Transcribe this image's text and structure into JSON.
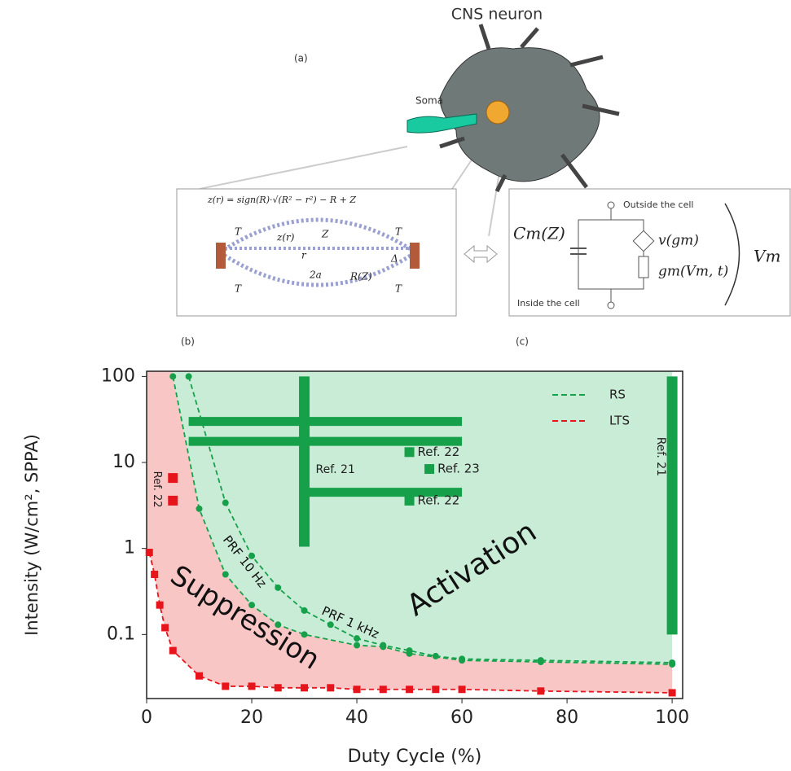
{
  "diagram": {
    "title": "CNS neuron",
    "label_a": "(a)",
    "soma": "Soma",
    "label_b": "(b)",
    "label_c": "(c)",
    "equation": "z(r) = sign(R)·√(R² − r²) − R + Z",
    "b_symbols": [
      "T",
      "T",
      "T",
      "T",
      "z(r)",
      "Z",
      "r",
      "2a",
      "R(Z)",
      "Δ"
    ],
    "outside": "Outside the cell",
    "inside": "Inside the cell",
    "cm": "Cm(Z)",
    "v": "v(gm)",
    "gm": "gm(Vm, t)",
    "vm": "Vm"
  },
  "chart_data": {
    "type": "line",
    "xlabel": "Duty Cycle (%)",
    "ylabel": "Intensity (W/cm², SPPA)",
    "xlim": [
      0,
      102
    ],
    "ylim": [
      0.018,
      115
    ],
    "yscale": "log",
    "xticks": [
      0,
      20,
      40,
      60,
      80,
      100
    ],
    "yticks": [
      0.1,
      1,
      10,
      100
    ],
    "legend": "upper right",
    "fill_colors": [
      "#c8ecd6",
      "#f9c6c6"
    ],
    "series": [
      {
        "name": "RS",
        "color": "#17a04a",
        "x": [
          5,
          10,
          15,
          20,
          25,
          30,
          40,
          45,
          50,
          60,
          75,
          100
        ],
        "values": [
          100,
          2.9,
          0.5,
          0.22,
          0.13,
          0.1,
          0.075,
          0.072,
          0.06,
          0.05,
          0.048,
          0.045
        ]
      },
      {
        "color": "#17a04a",
        "x": [
          8,
          15,
          20,
          25,
          30,
          35,
          40,
          45,
          50,
          55,
          60,
          75,
          100
        ],
        "values": [
          100,
          3.4,
          0.82,
          0.35,
          0.19,
          0.13,
          0.09,
          0.075,
          0.065,
          0.056,
          0.052,
          0.05,
          0.047
        ]
      },
      {
        "name": "LTS",
        "color": "#e8141c",
        "x": [
          0.5,
          1.5,
          2.5,
          3.5,
          5,
          10,
          15,
          20,
          25,
          30,
          35,
          40,
          45,
          50,
          55,
          60,
          75,
          100
        ],
        "values": [
          0.9,
          0.5,
          0.22,
          0.12,
          0.065,
          0.033,
          0.025,
          0.025,
          0.024,
          0.024,
          0.024,
          0.023,
          0.023,
          0.023,
          0.023,
          0.023,
          0.022,
          0.021
        ]
      }
    ],
    "ranges": [
      {
        "x": [
          8,
          60
        ],
        "y": 30,
        "color": "#17a04a"
      },
      {
        "x": [
          8,
          60
        ],
        "y": 17.6,
        "color": "#17a04a"
      },
      {
        "label": "Ref. 21",
        "x": 30,
        "y": [
          1.05,
          100
        ],
        "color": "#17a04a"
      },
      {
        "x": [
          30,
          60
        ],
        "y": 4.5,
        "color": "#17a04a"
      },
      {
        "label": "Ref. 21",
        "x": 100,
        "y": [
          0.1,
          100
        ],
        "color": "#17a04a"
      }
    ],
    "points": [
      {
        "label": "Ref. 22",
        "x": 50,
        "y": 13.2,
        "color": "#17a04a"
      },
      {
        "label": "Ref. 23",
        "x": 53.8,
        "y": 8.4,
        "color": "#17a04a"
      },
      {
        "label": "Ref. 22",
        "x": 50,
        "y": 3.6,
        "color": "#17a04a"
      },
      {
        "label": "Ref. 22",
        "x": 5,
        "y": 6.6,
        "color": "#e8141c"
      },
      {
        "x": 5,
        "y": 3.6,
        "color": "#e8141c"
      }
    ],
    "annotations": [
      "Activation",
      "Suppression",
      "PRF 10 Hz",
      "PRF 1 kHz"
    ]
  }
}
